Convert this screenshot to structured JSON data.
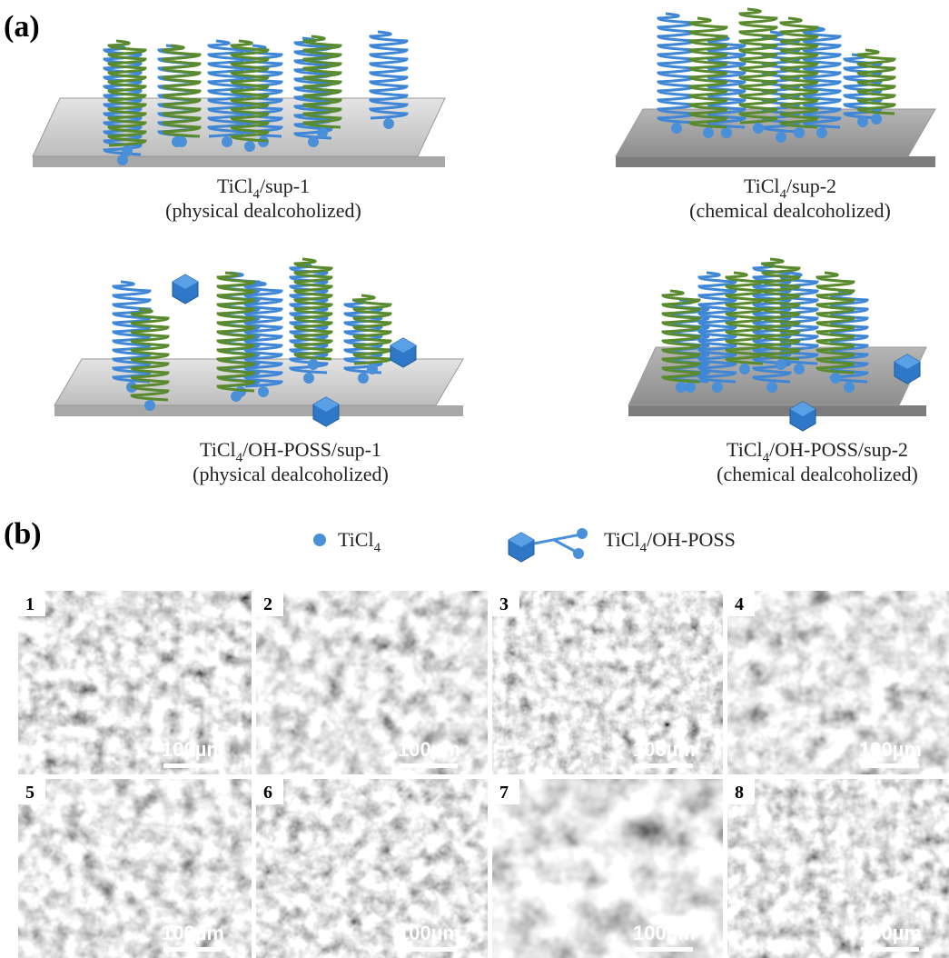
{
  "panel_labels": {
    "a": "(a)",
    "b": "(b)"
  },
  "schemes": [
    {
      "formula": {
        "base": "TiCl",
        "sub": "4",
        "rest": "/sup-1"
      },
      "method": "(physical dealcoholized)"
    },
    {
      "formula": {
        "base": "TiCl",
        "sub": "4",
        "rest": "/sup-2"
      },
      "method": "(chemical dealcoholized)"
    },
    {
      "formula": {
        "base": "TiCl",
        "sub": "4",
        "rest": "/OH-POSS/sup-1"
      },
      "method": "(physical dealcoholized)"
    },
    {
      "formula": {
        "base": "TiCl",
        "sub": "4",
        "rest": "/OH-POSS/sup-2"
      },
      "method": "(chemical dealcoholized)"
    }
  ],
  "legend": [
    {
      "base": "TiCl",
      "sub": "4"
    },
    {
      "base": "TiCl",
      "sub": "4",
      "rest": "/OH-POSS"
    }
  ],
  "micrographs": [
    {
      "label": "1",
      "scale": "100µm"
    },
    {
      "label": "2",
      "scale": "100µm"
    },
    {
      "label": "3",
      "scale": "100µm"
    },
    {
      "label": "4",
      "scale": "100µm"
    },
    {
      "label": "5",
      "scale": "100µm"
    },
    {
      "label": "6",
      "scale": "100µm"
    },
    {
      "label": "7",
      "scale": "100µm"
    },
    {
      "label": "8",
      "scale": "100µm"
    }
  ]
}
